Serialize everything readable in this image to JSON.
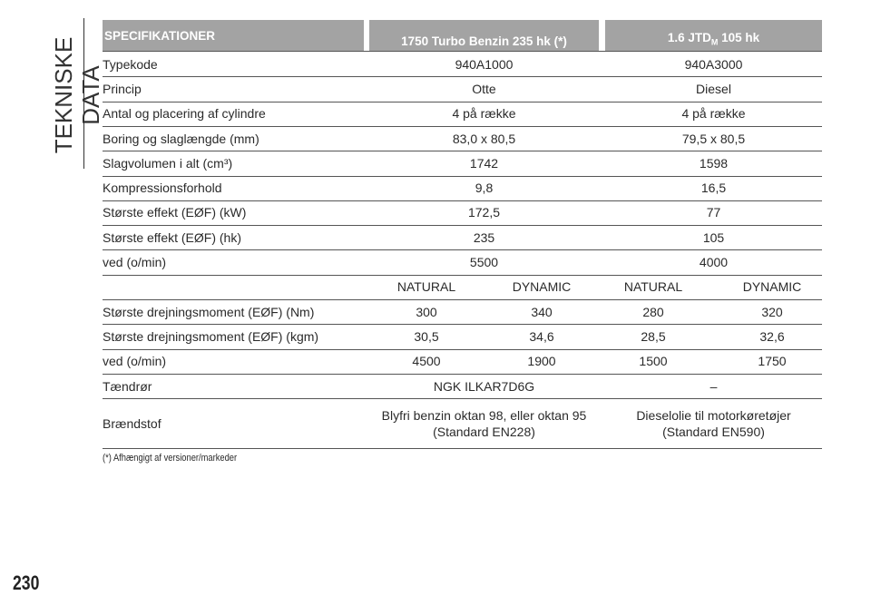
{
  "side_title": "TEKNISKE DATA",
  "header": {
    "spec": "SPECIFIKATIONER",
    "col1": "1750 Turbo Benzin 235 hk (*)",
    "col2": {
      "main": "1.6 JTD",
      "sub": "M",
      "rest": "105 hk"
    }
  },
  "rows": [
    {
      "label": "Typekode",
      "values": [
        "940A1000",
        "940A3000"
      ]
    },
    {
      "label": "Princip",
      "values": [
        "Otte",
        "Diesel"
      ]
    },
    {
      "label": "Antal og placering af cylindre",
      "values": [
        "4 på række",
        "4 på række"
      ]
    },
    {
      "label": "Boring og slaglængde (mm)",
      "values": [
        "83,0 x 80,5",
        "79,5 x 80,5"
      ]
    },
    {
      "label": "Slagvolumen i alt (cm³)",
      "values": [
        "1742",
        "1598"
      ]
    },
    {
      "label": "Kompressionsforhold",
      "values": [
        "9,8",
        "16,5"
      ]
    },
    {
      "label": "Største effekt (EØF) (kW)",
      "values": [
        "172,5",
        "77"
      ]
    },
    {
      "label": "Største effekt (EØF) (hk)",
      "values": [
        "235",
        "105"
      ]
    },
    {
      "label": "ved (o/min)",
      "values": [
        "5500",
        "4000"
      ]
    },
    {
      "values": [
        "NATURAL",
        "DYNAMIC",
        "NATURAL",
        "DYNAMIC"
      ]
    },
    {
      "label": "Største drejningsmoment (EØF) (Nm)",
      "values": [
        "300",
        "340",
        "280",
        "320"
      ]
    },
    {
      "label": "Største drejningsmoment (EØF) (kgm)",
      "values": [
        "30,5",
        "34,6",
        "28,5",
        "32,6"
      ]
    },
    {
      "label": "ved (o/min)",
      "values": [
        "4500",
        "1900",
        "1500",
        "1750"
      ]
    },
    {
      "label": "Tændrør",
      "values": [
        "NGK ILKAR7D6G",
        "–"
      ]
    },
    {
      "label": "Brændstof",
      "values": [
        "Blyfri benzin oktan 98, eller oktan 95\n(Standard EN228)",
        "Dieselolie til motorkøretøjer\n(Standard EN590)"
      ]
    }
  ],
  "footnote": "(*) Afhængigt af versioner/markeder",
  "page_number": "230"
}
